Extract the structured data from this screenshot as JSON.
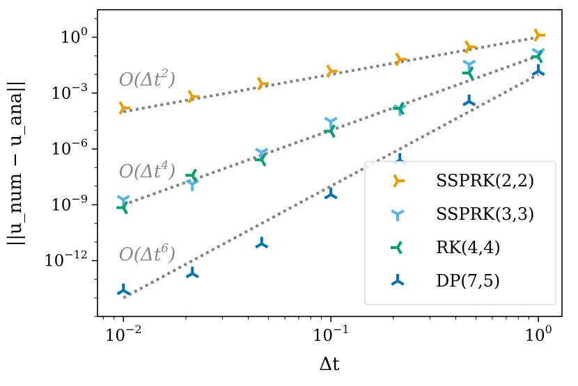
{
  "chart_data": {
    "type": "scatter",
    "title": "",
    "xlabel": "Δt",
    "ylabel": "||u_num − u_ana||",
    "xscale": "log",
    "yscale": "log",
    "xlim": [
      0.0075,
      1.3
    ],
    "ylim": [
      1e-15,
      30
    ],
    "x_ticks": [
      {
        "value": 0.01,
        "base": "10",
        "exp": "−2"
      },
      {
        "value": 0.1,
        "base": "10",
        "exp": "−1"
      },
      {
        "value": 1,
        "base": "10",
        "exp": "0"
      }
    ],
    "y_ticks": [
      {
        "value": 1,
        "base": "10",
        "exp": "0"
      },
      {
        "value": 0.001,
        "base": "10",
        "exp": "−3"
      },
      {
        "value": 1e-06,
        "base": "10",
        "exp": "−6"
      },
      {
        "value": 1e-09,
        "base": "10",
        "exp": "−9"
      },
      {
        "value": 1e-12,
        "base": "10",
        "exp": "−12"
      }
    ],
    "x": [
      0.01,
      0.0215,
      0.0464,
      0.1,
      0.215,
      0.464,
      1.0
    ],
    "series": [
      {
        "name": "SSPRK(2,2)",
        "color": "#E69F00",
        "marker": "tri-right",
        "values": [
          0.00016,
          0.00065,
          0.0032,
          0.015,
          0.065,
          0.3,
          1.3
        ]
      },
      {
        "name": "SSPRK(3,3)",
        "color": "#56B4E9",
        "marker": "tri-down",
        "values": [
          1.9e-09,
          1.3e-08,
          6.5e-07,
          3e-05,
          0.00014,
          0.035,
          0.15
        ]
      },
      {
        "name": "RK(4,4)",
        "color": "#009E73",
        "marker": "tri-left",
        "values": [
          7e-10,
          3.8e-08,
          2.6e-07,
          9e-06,
          0.00015,
          0.012,
          0.09
        ]
      },
      {
        "name": "DP(7,5)",
        "color": "#0072B2",
        "marker": "tri-up",
        "values": [
          2.5e-14,
          2e-13,
          8e-12,
          3.5e-09,
          2.5e-07,
          0.00035,
          0.015
        ]
      }
    ],
    "reference_lines": [
      {
        "order": 2,
        "color": "#808080",
        "x": [
          0.01,
          1.0
        ],
        "y": [
          0.0001,
          1.0
        ]
      },
      {
        "order": 4,
        "color": "#808080",
        "x": [
          0.01,
          1.0
        ],
        "y": [
          1e-09,
          0.1
        ]
      },
      {
        "order": 6,
        "color": "#808080",
        "x": [
          0.01,
          1.0
        ],
        "y": [
          1e-14,
          0.01
        ]
      }
    ],
    "annotations": [
      {
        "text": "O(Δt",
        "exp": "2",
        "close": ")",
        "x": 0.0095,
        "y": 0.0025
      },
      {
        "text": "O(Δt",
        "exp": "4",
        "close": ")",
        "x": 0.0095,
        "y": 3e-08
      },
      {
        "text": "O(Δt",
        "exp": "6",
        "close": ")",
        "x": 0.0095,
        "y": 1e-12
      }
    ],
    "legend_position": "lower-right",
    "grid": false
  }
}
